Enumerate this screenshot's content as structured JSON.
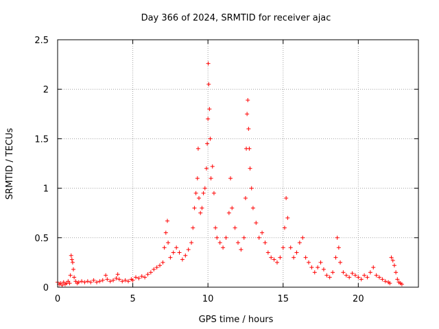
{
  "chart_data": {
    "type": "scatter",
    "title": "Day 366 of 2024, SRMTID for receiver ajac",
    "xlabel": "GPS time / hours",
    "ylabel": "SRMTID / TECUs",
    "xlim": [
      0,
      24.0
    ],
    "ylim": [
      0,
      2.5
    ],
    "x_ticks": [
      0,
      5,
      10,
      15,
      20
    ],
    "x_tick_labels": [
      "0",
      "5",
      "10",
      "15",
      "20"
    ],
    "y_ticks": [
      0,
      0.5,
      1,
      1.5,
      2,
      2.5
    ],
    "y_tick_labels": [
      "0",
      "0.5",
      "1",
      "1.5",
      "2",
      "2.5"
    ],
    "grid": true,
    "marker": "+",
    "marker_color": "#ff0000",
    "series": [
      {
        "name": "SRMTID",
        "points": [
          [
            0.0,
            0.05
          ],
          [
            0.1,
            0.03
          ],
          [
            0.2,
            0.04
          ],
          [
            0.3,
            0.02
          ],
          [
            0.4,
            0.05
          ],
          [
            0.5,
            0.03
          ],
          [
            0.6,
            0.04
          ],
          [
            0.7,
            0.06
          ],
          [
            0.8,
            0.04
          ],
          [
            0.85,
            0.12
          ],
          [
            0.9,
            0.32
          ],
          [
            0.95,
            0.28
          ],
          [
            1.0,
            0.25
          ],
          [
            1.05,
            0.18
          ],
          [
            1.1,
            0.1
          ],
          [
            1.2,
            0.06
          ],
          [
            1.3,
            0.04
          ],
          [
            1.4,
            0.05
          ],
          [
            1.6,
            0.06
          ],
          [
            1.8,
            0.05
          ],
          [
            2.0,
            0.06
          ],
          [
            2.2,
            0.05
          ],
          [
            2.4,
            0.07
          ],
          [
            2.6,
            0.05
          ],
          [
            2.8,
            0.06
          ],
          [
            3.0,
            0.07
          ],
          [
            3.2,
            0.12
          ],
          [
            3.3,
            0.08
          ],
          [
            3.5,
            0.06
          ],
          [
            3.7,
            0.07
          ],
          [
            3.9,
            0.09
          ],
          [
            4.0,
            0.13
          ],
          [
            4.1,
            0.08
          ],
          [
            4.3,
            0.06
          ],
          [
            4.5,
            0.07
          ],
          [
            4.7,
            0.06
          ],
          [
            4.9,
            0.08
          ],
          [
            5.0,
            0.07
          ],
          [
            5.2,
            0.1
          ],
          [
            5.4,
            0.09
          ],
          [
            5.6,
            0.11
          ],
          [
            5.8,
            0.1
          ],
          [
            6.0,
            0.13
          ],
          [
            6.2,
            0.15
          ],
          [
            6.4,
            0.18
          ],
          [
            6.6,
            0.2
          ],
          [
            6.8,
            0.22
          ],
          [
            7.0,
            0.25
          ],
          [
            7.1,
            0.4
          ],
          [
            7.2,
            0.55
          ],
          [
            7.3,
            0.67
          ],
          [
            7.35,
            0.45
          ],
          [
            7.5,
            0.3
          ],
          [
            7.7,
            0.35
          ],
          [
            7.9,
            0.4
          ],
          [
            8.1,
            0.35
          ],
          [
            8.3,
            0.28
          ],
          [
            8.5,
            0.32
          ],
          [
            8.7,
            0.38
          ],
          [
            8.9,
            0.45
          ],
          [
            9.0,
            0.6
          ],
          [
            9.1,
            0.8
          ],
          [
            9.2,
            0.95
          ],
          [
            9.3,
            1.1
          ],
          [
            9.35,
            1.4
          ],
          [
            9.4,
            0.9
          ],
          [
            9.5,
            0.75
          ],
          [
            9.6,
            0.8
          ],
          [
            9.7,
            0.95
          ],
          [
            9.8,
            1.0
          ],
          [
            9.9,
            1.2
          ],
          [
            9.95,
            1.45
          ],
          [
            10.0,
            1.7
          ],
          [
            10.02,
            2.26
          ],
          [
            10.05,
            2.05
          ],
          [
            10.1,
            1.8
          ],
          [
            10.15,
            1.5
          ],
          [
            10.2,
            1.1
          ],
          [
            10.3,
            1.22
          ],
          [
            10.4,
            0.95
          ],
          [
            10.5,
            0.6
          ],
          [
            10.6,
            0.5
          ],
          [
            10.8,
            0.45
          ],
          [
            11.0,
            0.4
          ],
          [
            11.2,
            0.5
          ],
          [
            11.4,
            0.75
          ],
          [
            11.5,
            1.1
          ],
          [
            11.6,
            0.8
          ],
          [
            11.8,
            0.6
          ],
          [
            12.0,
            0.45
          ],
          [
            12.2,
            0.38
          ],
          [
            12.4,
            0.5
          ],
          [
            12.5,
            0.9
          ],
          [
            12.55,
            1.4
          ],
          [
            12.6,
            1.75
          ],
          [
            12.65,
            1.89
          ],
          [
            12.7,
            1.6
          ],
          [
            12.75,
            1.4
          ],
          [
            12.8,
            1.2
          ],
          [
            12.9,
            1.0
          ],
          [
            13.0,
            0.8
          ],
          [
            13.2,
            0.65
          ],
          [
            13.4,
            0.5
          ],
          [
            13.6,
            0.55
          ],
          [
            13.8,
            0.45
          ],
          [
            14.0,
            0.35
          ],
          [
            14.2,
            0.3
          ],
          [
            14.4,
            0.28
          ],
          [
            14.6,
            0.25
          ],
          [
            14.8,
            0.3
          ],
          [
            15.0,
            0.4
          ],
          [
            15.1,
            0.6
          ],
          [
            15.2,
            0.9
          ],
          [
            15.3,
            0.7
          ],
          [
            15.5,
            0.4
          ],
          [
            15.7,
            0.3
          ],
          [
            15.9,
            0.35
          ],
          [
            16.1,
            0.45
          ],
          [
            16.3,
            0.5
          ],
          [
            16.5,
            0.3
          ],
          [
            16.7,
            0.25
          ],
          [
            16.9,
            0.2
          ],
          [
            17.1,
            0.15
          ],
          [
            17.3,
            0.2
          ],
          [
            17.5,
            0.25
          ],
          [
            17.7,
            0.18
          ],
          [
            17.9,
            0.12
          ],
          [
            18.1,
            0.1
          ],
          [
            18.3,
            0.15
          ],
          [
            18.5,
            0.3
          ],
          [
            18.6,
            0.5
          ],
          [
            18.7,
            0.4
          ],
          [
            18.8,
            0.25
          ],
          [
            19.0,
            0.15
          ],
          [
            19.2,
            0.12
          ],
          [
            19.4,
            0.1
          ],
          [
            19.6,
            0.14
          ],
          [
            19.8,
            0.12
          ],
          [
            20.0,
            0.1
          ],
          [
            20.2,
            0.08
          ],
          [
            20.4,
            0.12
          ],
          [
            20.6,
            0.1
          ],
          [
            20.8,
            0.15
          ],
          [
            21.0,
            0.2
          ],
          [
            21.2,
            0.12
          ],
          [
            21.4,
            0.1
          ],
          [
            21.6,
            0.08
          ],
          [
            21.8,
            0.06
          ],
          [
            22.0,
            0.05
          ],
          [
            22.1,
            0.04
          ],
          [
            22.2,
            0.3
          ],
          [
            22.3,
            0.27
          ],
          [
            22.4,
            0.22
          ],
          [
            22.5,
            0.15
          ],
          [
            22.6,
            0.08
          ],
          [
            22.7,
            0.05
          ],
          [
            22.8,
            0.04
          ],
          [
            22.9,
            0.03
          ]
        ]
      }
    ]
  }
}
